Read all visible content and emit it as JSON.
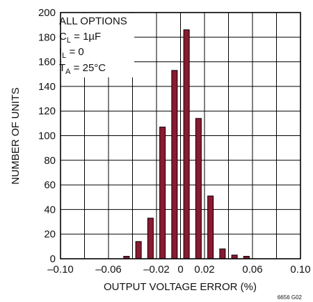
{
  "chart_data": {
    "type": "bar",
    "title": "",
    "xlabel": "OUTPUT VOLTAGE ERROR (%)",
    "ylabel": "NUMBER OF UNITS",
    "xlim": [
      -0.1,
      0.1
    ],
    "ylim": [
      0,
      200
    ],
    "x_ticks": [
      -0.1,
      -0.06,
      -0.02,
      0,
      0.02,
      0.06,
      0.1
    ],
    "x_tick_labels": [
      "–0.10",
      "–0.06",
      "–0.02",
      "0",
      "0.02",
      "0.06",
      "0.10"
    ],
    "y_ticks": [
      0,
      20,
      40,
      60,
      80,
      100,
      120,
      140,
      160,
      180,
      200
    ],
    "y_tick_labels": [
      "0",
      "20",
      "40",
      "60",
      "80",
      "100",
      "120",
      "140",
      "160",
      "180",
      "200"
    ],
    "grid": true,
    "bar_color": "#8a1a32",
    "bars": [
      {
        "x": -0.045,
        "value": 2
      },
      {
        "x": -0.035,
        "value": 14
      },
      {
        "x": -0.025,
        "value": 33
      },
      {
        "x": -0.015,
        "value": 107
      },
      {
        "x": -0.005,
        "value": 153
      },
      {
        "x": 0.005,
        "value": 186
      },
      {
        "x": 0.015,
        "value": 114
      },
      {
        "x": 0.025,
        "value": 51
      },
      {
        "x": 0.035,
        "value": 8
      },
      {
        "x": 0.045,
        "value": 3
      },
      {
        "x": 0.055,
        "value": 2
      }
    ],
    "annotation": {
      "line1": "ALL OPTIONS",
      "line2_main": "C",
      "line2_sub": "L",
      "line2_rest": " = 1µF",
      "line3_main": "I",
      "line3_sub": "L",
      "line3_rest": " = 0",
      "line4_main": "T",
      "line4_sub": "A",
      "line4_rest": " = 25°C"
    },
    "figure_id": "6656 G02"
  }
}
